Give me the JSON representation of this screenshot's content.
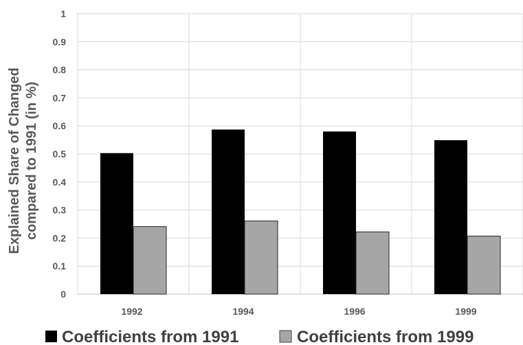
{
  "chart_data": {
    "type": "bar",
    "categories": [
      "1992",
      "1994",
      "1996",
      "1999"
    ],
    "series": [
      {
        "name": "Coefficients from 1991",
        "values": [
          0.503,
          0.587,
          0.58,
          0.549
        ],
        "color": "#000000"
      },
      {
        "name": "Coefficients from 1999",
        "values": [
          0.241,
          0.261,
          0.222,
          0.207
        ],
        "color": "#a6a6a6"
      }
    ],
    "y_ticks": [
      "0",
      "0.1",
      "0.2",
      "0.3",
      "0.4",
      "0.5",
      "0.6",
      "0.7",
      "0.8",
      "0.9",
      "1"
    ],
    "ylabel_line1": "Explained Share of Changed",
    "ylabel_line2": "compared to 1991 (in %)",
    "xlabel": "",
    "ylim": [
      0,
      1
    ],
    "grid": true,
    "legend_position": "bottom"
  }
}
